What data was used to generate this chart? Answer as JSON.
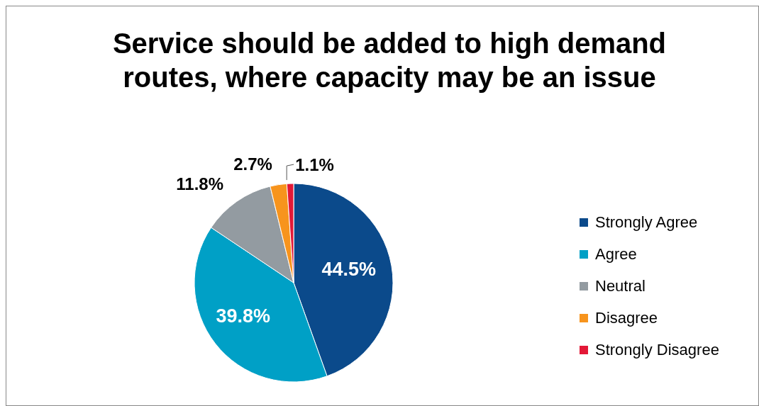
{
  "chart_data": {
    "type": "pie",
    "title": "Service should be added to high demand routes, where capacity may be an issue",
    "categories": [
      "Strongly Agree",
      "Agree",
      "Neutral",
      "Disagree",
      "Strongly Disagree"
    ],
    "values": [
      44.5,
      39.8,
      11.8,
      2.7,
      1.1
    ],
    "colors": [
      "#0b4a8b",
      "#00a0c6",
      "#939ba1",
      "#f7941d",
      "#e31837"
    ],
    "value_labels": [
      "44.5%",
      "39.8%",
      "11.8%",
      "2.7%",
      "1.1%"
    ],
    "legend": "right"
  }
}
